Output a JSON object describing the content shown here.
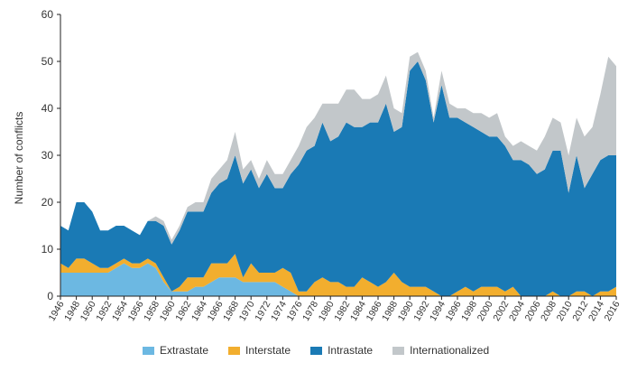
{
  "chart_data": {
    "type": "area",
    "stacked": true,
    "ylabel": "Number of conflicts",
    "xlabel": "",
    "ylim": [
      0,
      60
    ],
    "yticks": [
      0,
      10,
      20,
      30,
      40,
      50,
      60
    ],
    "xlim": [
      1946,
      2016
    ],
    "xtick_labels": [
      "1946",
      "1948",
      "1950",
      "1952",
      "1954",
      "1956",
      "1958",
      "1960",
      "1962",
      "1964",
      "1966",
      "1968",
      "1970",
      "1972",
      "1974",
      "1976",
      "1978",
      "1980",
      "1982",
      "1984",
      "1986",
      "1988",
      "1990",
      "1992",
      "1994",
      "1996",
      "1998",
      "2000",
      "2002",
      "2004",
      "2006",
      "2008",
      "2010",
      "2012",
      "2014",
      "2016"
    ],
    "grid": false,
    "legend_position": "bottom",
    "x": [
      1946,
      1947,
      1948,
      1949,
      1950,
      1951,
      1952,
      1953,
      1954,
      1955,
      1956,
      1957,
      1958,
      1959,
      1960,
      1961,
      1962,
      1963,
      1964,
      1965,
      1966,
      1967,
      1968,
      1969,
      1970,
      1971,
      1972,
      1973,
      1974,
      1975,
      1976,
      1977,
      1978,
      1979,
      1980,
      1981,
      1982,
      1983,
      1984,
      1985,
      1986,
      1987,
      1988,
      1989,
      1990,
      1991,
      1992,
      1993,
      1994,
      1995,
      1996,
      1997,
      1998,
      1999,
      2000,
      2001,
      2002,
      2003,
      2004,
      2005,
      2006,
      2007,
      2008,
      2009,
      2010,
      2011,
      2012,
      2013,
      2014,
      2015,
      2016
    ],
    "series": [
      {
        "name": "Extrastate",
        "color": "#6cb8e2",
        "values": [
          5,
          5,
          5,
          5,
          5,
          5,
          5,
          6,
          7,
          6,
          6,
          7,
          6,
          3,
          1,
          1,
          1,
          2,
          2,
          3,
          4,
          4,
          4,
          3,
          3,
          3,
          3,
          3,
          2,
          1,
          0,
          0,
          0,
          0,
          0,
          0,
          0,
          0,
          0,
          0,
          0,
          0,
          0,
          0,
          0,
          0,
          0,
          0,
          0,
          0,
          0,
          0,
          0,
          0,
          0,
          0,
          0,
          0,
          0,
          0,
          0,
          0,
          0,
          0,
          0,
          0,
          0,
          0,
          0,
          0,
          0
        ]
      },
      {
        "name": "Interstate",
        "color": "#f2ae2e",
        "values": [
          2,
          1,
          3,
          3,
          2,
          1,
          1,
          1,
          1,
          1,
          1,
          1,
          1,
          1,
          0,
          1,
          3,
          2,
          2,
          4,
          3,
          3,
          5,
          1,
          4,
          2,
          2,
          2,
          4,
          4,
          1,
          1,
          3,
          4,
          3,
          3,
          2,
          2,
          4,
          3,
          2,
          3,
          5,
          3,
          2,
          2,
          2,
          1,
          0,
          0,
          1,
          2,
          1,
          2,
          2,
          2,
          1,
          2,
          0,
          0,
          0,
          0,
          1,
          0,
          0,
          1,
          1,
          0,
          1,
          1,
          2
        ]
      },
      {
        "name": "Intrastate",
        "color": "#1a7ab5",
        "values": [
          8,
          8,
          12,
          12,
          11,
          8,
          8,
          8,
          7,
          7,
          6,
          8,
          9,
          11,
          10,
          12,
          14,
          14,
          14,
          15,
          17,
          18,
          21,
          20,
          20,
          18,
          21,
          18,
          17,
          21,
          27,
          30,
          29,
          33,
          30,
          31,
          35,
          34,
          32,
          34,
          35,
          38,
          30,
          33,
          46,
          48,
          44,
          36,
          45,
          38,
          37,
          35,
          35,
          33,
          32,
          32,
          31,
          27,
          29,
          28,
          26,
          27,
          30,
          31,
          22,
          29,
          22,
          26,
          28,
          29,
          28
        ]
      },
      {
        "name": "Internationalized",
        "color": "#c2c7ca",
        "values": [
          0,
          0,
          0,
          0,
          0,
          0,
          0,
          0,
          0,
          0,
          0,
          0,
          1,
          1,
          1,
          1,
          1,
          2,
          2,
          3,
          3,
          4,
          5,
          3,
          2,
          2,
          3,
          3,
          3,
          3,
          4,
          5,
          6,
          4,
          8,
          7,
          7,
          8,
          6,
          5,
          6,
          6,
          5,
          3,
          3,
          2,
          2,
          1,
          3,
          3,
          2,
          3,
          3,
          4,
          4,
          5,
          2,
          3,
          4,
          4,
          5,
          7,
          7,
          6,
          8,
          8,
          11,
          10,
          14,
          21,
          19
        ]
      }
    ]
  }
}
